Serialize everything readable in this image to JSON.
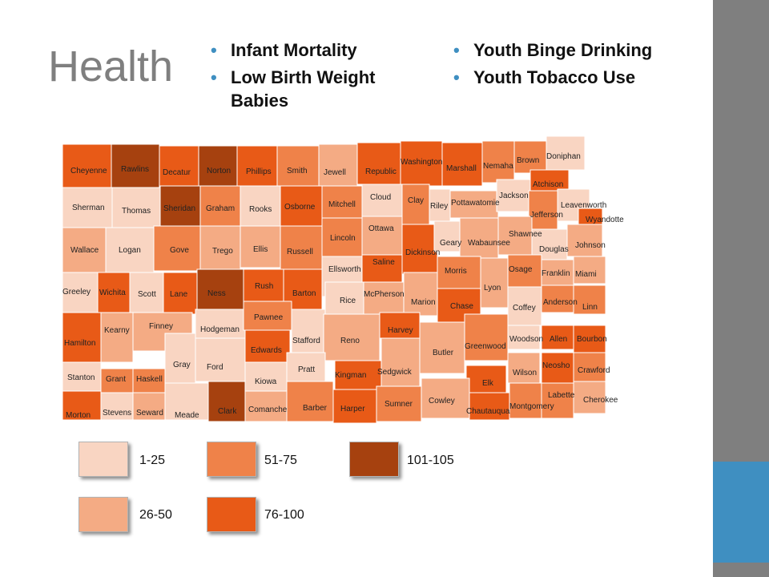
{
  "slide": {
    "title": "Health",
    "bullets_left": [
      "Infant Mortality",
      "Low Birth Weight Babies"
    ],
    "bullets_right": [
      "Youth Binge Drinking",
      "Youth Tobacco Use"
    ]
  },
  "colors": {
    "1-25": "#f9d5c2",
    "26-50": "#f4ab84",
    "51-75": "#ef8249",
    "76-100": "#e85a17",
    "101-105": "#a6410f",
    "stripe": "#7f7f7f",
    "accent": "#3f8fc1"
  },
  "legend": [
    {
      "label": "1-25",
      "tier": "1-25"
    },
    {
      "label": "51-75",
      "tier": "51-75"
    },
    {
      "label": "101-105",
      "tier": "101-105"
    },
    {
      "label": "26-50",
      "tier": "26-50"
    },
    {
      "label": "76-100",
      "tier": "76-100"
    }
  ],
  "counties": [
    {
      "name": "Cheyenne",
      "tier": "76-100"
    },
    {
      "name": "Rawlins",
      "tier": "101-105"
    },
    {
      "name": "Decatur",
      "tier": "76-100"
    },
    {
      "name": "Norton",
      "tier": "101-105"
    },
    {
      "name": "Phillips",
      "tier": "76-100"
    },
    {
      "name": "Smith",
      "tier": "51-75"
    },
    {
      "name": "Jewell",
      "tier": "26-50"
    },
    {
      "name": "Republic",
      "tier": "76-100"
    },
    {
      "name": "Washington",
      "tier": "76-100"
    },
    {
      "name": "Marshall",
      "tier": "76-100"
    },
    {
      "name": "Nemaha",
      "tier": "51-75"
    },
    {
      "name": "Brown",
      "tier": "51-75"
    },
    {
      "name": "Doniphan",
      "tier": "1-25"
    },
    {
      "name": "Sherman",
      "tier": "1-25"
    },
    {
      "name": "Thomas",
      "tier": "1-25"
    },
    {
      "name": "Sheridan",
      "tier": "101-105"
    },
    {
      "name": "Graham",
      "tier": "51-75"
    },
    {
      "name": "Rooks",
      "tier": "1-25"
    },
    {
      "name": "Osborne",
      "tier": "76-100"
    },
    {
      "name": "Mitchell",
      "tier": "51-75"
    },
    {
      "name": "Cloud",
      "tier": "1-25"
    },
    {
      "name": "Clay",
      "tier": "51-75"
    },
    {
      "name": "Riley",
      "tier": "1-25"
    },
    {
      "name": "Pottawatomie",
      "tier": "26-50"
    },
    {
      "name": "Jackson",
      "tier": "1-25"
    },
    {
      "name": "Atchison",
      "tier": "76-100"
    },
    {
      "name": "Jefferson",
      "tier": "51-75"
    },
    {
      "name": "Leavenworth",
      "tier": "1-25"
    },
    {
      "name": "Wyandotte",
      "tier": "76-100"
    },
    {
      "name": "Wallace",
      "tier": "26-50"
    },
    {
      "name": "Logan",
      "tier": "1-25"
    },
    {
      "name": "Gove",
      "tier": "51-75"
    },
    {
      "name": "Trego",
      "tier": "26-50"
    },
    {
      "name": "Ellis",
      "tier": "26-50"
    },
    {
      "name": "Russell",
      "tier": "51-75"
    },
    {
      "name": "Lincoln",
      "tier": "51-75"
    },
    {
      "name": "Ottawa",
      "tier": "26-50"
    },
    {
      "name": "Dickinson",
      "tier": "76-100"
    },
    {
      "name": "Geary",
      "tier": "1-25"
    },
    {
      "name": "Wabaunsee",
      "tier": "26-50"
    },
    {
      "name": "Shawnee",
      "tier": "26-50"
    },
    {
      "name": "Douglas",
      "tier": "1-25"
    },
    {
      "name": "Johnson",
      "tier": "26-50"
    },
    {
      "name": "Greeley",
      "tier": "1-25"
    },
    {
      "name": "Wichita",
      "tier": "76-100"
    },
    {
      "name": "Scott",
      "tier": "1-25"
    },
    {
      "name": "Lane",
      "tier": "76-100"
    },
    {
      "name": "Ness",
      "tier": "101-105"
    },
    {
      "name": "Rush",
      "tier": "76-100"
    },
    {
      "name": "Barton",
      "tier": "76-100"
    },
    {
      "name": "Ellsworth",
      "tier": "1-25"
    },
    {
      "name": "Saline",
      "tier": "76-100"
    },
    {
      "name": "Morris",
      "tier": "51-75"
    },
    {
      "name": "Lyon",
      "tier": "26-50"
    },
    {
      "name": "Osage",
      "tier": "51-75"
    },
    {
      "name": "Franklin",
      "tier": "26-50"
    },
    {
      "name": "Miami",
      "tier": "26-50"
    },
    {
      "name": "Hamilton",
      "tier": "76-100"
    },
    {
      "name": "Kearny",
      "tier": "26-50"
    },
    {
      "name": "Finney",
      "tier": "26-50"
    },
    {
      "name": "Hodgeman",
      "tier": "1-25"
    },
    {
      "name": "Pawnee",
      "tier": "51-75"
    },
    {
      "name": "Stafford",
      "tier": "1-25"
    },
    {
      "name": "Rice",
      "tier": "1-25"
    },
    {
      "name": "McPherson",
      "tier": "26-50"
    },
    {
      "name": "Marion",
      "tier": "26-50"
    },
    {
      "name": "Chase",
      "tier": "76-100"
    },
    {
      "name": "Coffey",
      "tier": "1-25"
    },
    {
      "name": "Anderson",
      "tier": "51-75"
    },
    {
      "name": "Linn",
      "tier": "51-75"
    },
    {
      "name": "Gray",
      "tier": "1-25"
    },
    {
      "name": "Ford",
      "tier": "1-25"
    },
    {
      "name": "Edwards",
      "tier": "76-100"
    },
    {
      "name": "Reno",
      "tier": "26-50"
    },
    {
      "name": "Harvey",
      "tier": "76-100"
    },
    {
      "name": "Butler",
      "tier": "26-50"
    },
    {
      "name": "Greenwood",
      "tier": "51-75"
    },
    {
      "name": "Woodson",
      "tier": "1-25"
    },
    {
      "name": "Allen",
      "tier": "76-100"
    },
    {
      "name": "Bourbon",
      "tier": "76-100"
    },
    {
      "name": "Stanton",
      "tier": "1-25"
    },
    {
      "name": "Grant",
      "tier": "51-75"
    },
    {
      "name": "Haskell",
      "tier": "51-75"
    },
    {
      "name": "Kiowa",
      "tier": "1-25"
    },
    {
      "name": "Pratt",
      "tier": "1-25"
    },
    {
      "name": "Kingman",
      "tier": "76-100"
    },
    {
      "name": "Sedgwick",
      "tier": "26-50"
    },
    {
      "name": "Elk",
      "tier": "76-100"
    },
    {
      "name": "Wilson",
      "tier": "26-50"
    },
    {
      "name": "Neosho",
      "tier": "76-100"
    },
    {
      "name": "Crawford",
      "tier": "51-75"
    },
    {
      "name": "Morton",
      "tier": "76-100"
    },
    {
      "name": "Stevens",
      "tier": "1-25"
    },
    {
      "name": "Seward",
      "tier": "26-50"
    },
    {
      "name": "Meade",
      "tier": "1-25"
    },
    {
      "name": "Clark",
      "tier": "101-105"
    },
    {
      "name": "Comanche",
      "tier": "26-50"
    },
    {
      "name": "Barber",
      "tier": "51-75"
    },
    {
      "name": "Harper",
      "tier": "76-100"
    },
    {
      "name": "Sumner",
      "tier": "51-75"
    },
    {
      "name": "Cowley",
      "tier": "26-50"
    },
    {
      "name": "Chautauqua",
      "tier": "76-100"
    },
    {
      "name": "Montgomery",
      "tier": "51-75"
    },
    {
      "name": "Labette",
      "tier": "51-75"
    },
    {
      "name": "Cherokee",
      "tier": "26-50"
    }
  ]
}
